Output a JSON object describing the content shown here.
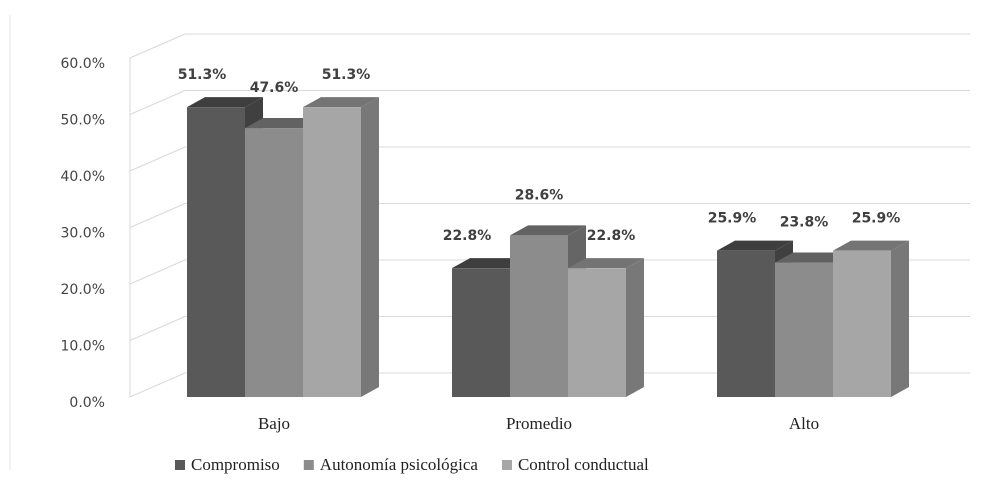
{
  "chart_data": {
    "type": "bar3d",
    "categories": [
      "Bajo",
      "Promedio",
      "Alto"
    ],
    "series": [
      {
        "name": "Compromiso",
        "color": "#595959",
        "values": [
          51.3,
          22.8,
          25.9
        ],
        "value_labels": [
          "51.3%",
          "22.8%",
          "25.9%"
        ]
      },
      {
        "name": "Autonomía psicológica",
        "color": "#8c8c8c",
        "values": [
          47.6,
          28.6,
          23.8
        ],
        "value_labels": [
          "47.6%",
          "28.6%",
          "23.8%"
        ]
      },
      {
        "name": "Control conductual",
        "color": "#a6a6a6",
        "values": [
          51.3,
          22.8,
          25.9
        ],
        "value_labels": [
          "51.3%",
          "22.8%",
          "25.9%"
        ]
      }
    ],
    "ylim": [
      0,
      60
    ],
    "yticks": [
      {
        "value": 0,
        "label": "0.0%"
      },
      {
        "value": 10,
        "label": "10.0%"
      },
      {
        "value": 20,
        "label": "20.0%"
      },
      {
        "value": 30,
        "label": "30.0%"
      },
      {
        "value": 40,
        "label": "40.0%"
      },
      {
        "value": 50,
        "label": "50.0%"
      },
      {
        "value": 60,
        "label": "60.0%"
      }
    ],
    "grid": true,
    "legend": "bottom"
  }
}
